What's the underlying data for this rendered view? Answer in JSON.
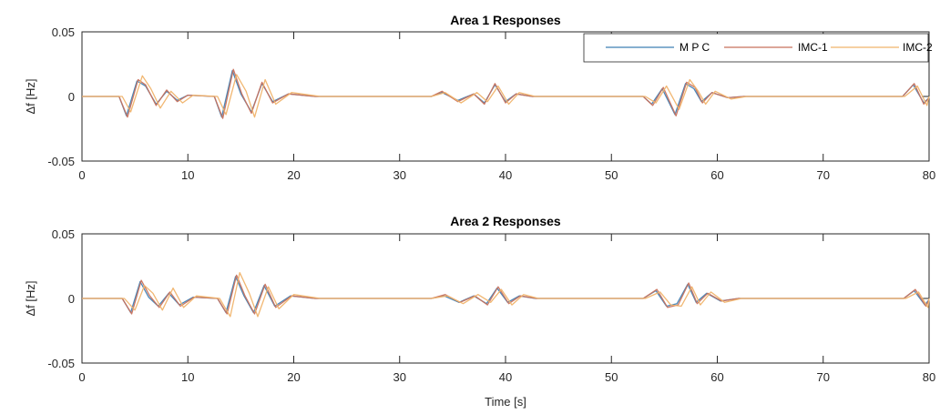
{
  "colors": {
    "axis": "#262626",
    "background": "#ffffff"
  },
  "legend": {
    "placement": "top-right",
    "items": [
      {
        "label": "M P C",
        "color": "#3f7fb3"
      },
      {
        "label": "IMC-1",
        "color": "#c8715c"
      },
      {
        "label": "IMC-2",
        "color": "#f0b36a"
      }
    ]
  },
  "chart_data": [
    {
      "type": "line",
      "title": "Area 1 Responses",
      "xlabel": "",
      "ylabel": "Δf [Hz]",
      "xlim": [
        0,
        80
      ],
      "ylim": [
        -0.05,
        0.05
      ],
      "xticks": [
        0,
        10,
        20,
        30,
        40,
        50,
        60,
        70,
        80
      ],
      "xtick_labels": [
        "0",
        "10",
        "20",
        "30",
        "40",
        "50",
        "60",
        "70",
        "80"
      ],
      "yticks": [
        -0.05,
        0,
        0.05
      ],
      "ytick_labels": [
        "-0.05",
        "0",
        "0.05"
      ],
      "grid": false,
      "legend": "top-right",
      "series": [
        {
          "name": "M P C",
          "color": "#3f7fb3",
          "x": [
            0,
            3.5,
            4.2,
            5.2,
            6.0,
            7.0,
            8.0,
            9.0,
            10.0,
            12.5,
            13.2,
            14.2,
            15.0,
            16.0,
            17.0,
            18.0,
            19.5,
            22.0,
            33.0,
            34.0,
            35.5,
            37.0,
            38.0,
            39.0,
            40.0,
            41.0,
            42.5,
            53.0,
            53.8,
            54.8,
            56.0,
            57.0,
            57.8,
            58.5,
            59.5,
            61.0,
            62.5,
            77.5,
            78.5,
            79.5,
            80.0
          ],
          "y": [
            0,
            0,
            -0.015,
            0.012,
            0.008,
            -0.006,
            0.004,
            -0.003,
            0.001,
            0,
            -0.016,
            0.02,
            0.002,
            -0.012,
            0.01,
            -0.004,
            0.002,
            0,
            0,
            0.003,
            -0.003,
            0.002,
            -0.005,
            0.009,
            -0.004,
            0.002,
            0,
            0,
            -0.006,
            0.006,
            -0.014,
            0.01,
            0.006,
            -0.004,
            0.003,
            -0.001,
            0,
            0,
            0.009,
            -0.005,
            -0.001
          ]
        },
        {
          "name": "IMC-1",
          "color": "#c8715c",
          "x": [
            0,
            3.5,
            4.3,
            5.3,
            6.0,
            7.0,
            8.0,
            9.0,
            10.0,
            12.5,
            13.3,
            14.3,
            15.1,
            16.0,
            17.0,
            18.0,
            19.5,
            22.0,
            33.0,
            34.0,
            35.5,
            37.0,
            38.0,
            39.0,
            40.0,
            41.0,
            42.5,
            53.0,
            53.9,
            54.9,
            56.1,
            57.1,
            57.9,
            58.6,
            59.5,
            61.0,
            62.5,
            77.5,
            78.6,
            79.5,
            80.0
          ],
          "y": [
            0,
            0,
            -0.016,
            0.013,
            0.009,
            -0.007,
            0.005,
            -0.004,
            0.001,
            0,
            -0.017,
            0.021,
            0.002,
            -0.013,
            0.011,
            -0.005,
            0.002,
            0,
            0,
            0.004,
            -0.004,
            0.002,
            -0.006,
            0.01,
            -0.005,
            0.002,
            0,
            0,
            -0.007,
            0.007,
            -0.015,
            0.011,
            0.007,
            -0.005,
            0.003,
            -0.001,
            0,
            0,
            0.01,
            -0.006,
            -0.001
          ]
        },
        {
          "name": "IMC-2",
          "color": "#f0b36a",
          "x": [
            0,
            3.8,
            4.6,
            5.7,
            6.5,
            7.4,
            8.4,
            9.5,
            10.5,
            12.8,
            13.6,
            14.6,
            15.5,
            16.3,
            17.3,
            18.3,
            19.8,
            22.5,
            33.0,
            34.3,
            35.8,
            37.3,
            38.3,
            39.3,
            40.3,
            41.3,
            42.8,
            53.2,
            54.2,
            55.2,
            56.4,
            57.4,
            58.2,
            58.9,
            59.8,
            61.3,
            62.8,
            77.7,
            78.9,
            79.8,
            80.0
          ],
          "y": [
            0,
            0,
            -0.012,
            0.016,
            0.006,
            -0.009,
            0.004,
            -0.005,
            0.001,
            0,
            -0.014,
            0.017,
            0.004,
            -0.016,
            0.013,
            -0.006,
            0.003,
            0,
            0,
            0.003,
            -0.005,
            0.003,
            -0.004,
            0.008,
            -0.006,
            0.003,
            0,
            0,
            -0.005,
            0.008,
            -0.01,
            0.013,
            0.004,
            -0.006,
            0.004,
            -0.002,
            0,
            0,
            0.008,
            -0.007,
            0
          ]
        }
      ]
    },
    {
      "type": "line",
      "title": "Area 2 Responses",
      "xlabel": "Time [s]",
      "ylabel": "Δf [Hz]",
      "xlim": [
        0,
        80
      ],
      "ylim": [
        -0.05,
        0.05
      ],
      "xticks": [
        0,
        10,
        20,
        30,
        40,
        50,
        60,
        70,
        80
      ],
      "xtick_labels": [
        "0",
        "10",
        "20",
        "30",
        "40",
        "50",
        "60",
        "70",
        "80"
      ],
      "yticks": [
        -0.05,
        0,
        0.05
      ],
      "ytick_labels": [
        "-0.05",
        "0",
        "0.05"
      ],
      "grid": false,
      "legend": "none",
      "series": [
        {
          "name": "M P C",
          "color": "#3f7fb3",
          "x": [
            0,
            3.8,
            4.6,
            5.5,
            6.3,
            7.2,
            8.2,
            9.2,
            10.5,
            12.8,
            13.6,
            14.5,
            15.3,
            16.2,
            17.2,
            18.2,
            19.7,
            22.0,
            33.0,
            34.2,
            35.6,
            37.0,
            38.2,
            39.2,
            40.2,
            41.3,
            42.8,
            53.0,
            54.2,
            55.2,
            56.2,
            57.2,
            58.0,
            59.0,
            60.3,
            62.0,
            77.6,
            78.6,
            79.6,
            80.0
          ],
          "y": [
            0,
            0,
            -0.011,
            0.013,
            0.001,
            -0.006,
            0.004,
            -0.005,
            0.001,
            0,
            -0.011,
            0.017,
            0.002,
            -0.011,
            0.01,
            -0.006,
            0.002,
            0,
            0,
            0.002,
            -0.003,
            0.002,
            -0.004,
            0.008,
            -0.003,
            0.002,
            0,
            0,
            0.006,
            -0.006,
            -0.004,
            0.011,
            -0.003,
            0.004,
            -0.002,
            0,
            0,
            0.006,
            -0.005,
            -0.001
          ]
        },
        {
          "name": "IMC-1",
          "color": "#c8715c",
          "x": [
            0,
            3.8,
            4.7,
            5.6,
            6.4,
            7.3,
            8.3,
            9.3,
            10.6,
            12.8,
            13.7,
            14.6,
            15.4,
            16.3,
            17.3,
            18.3,
            19.8,
            22.0,
            33.0,
            34.3,
            35.7,
            37.1,
            38.3,
            39.3,
            40.3,
            41.4,
            42.9,
            53.0,
            54.3,
            55.3,
            56.3,
            57.3,
            58.1,
            59.1,
            60.4,
            62.0,
            77.6,
            78.7,
            79.7,
            80.0
          ],
          "y": [
            0,
            0,
            -0.012,
            0.014,
            0.002,
            -0.007,
            0.005,
            -0.006,
            0.001,
            0,
            -0.012,
            0.018,
            0.002,
            -0.012,
            0.011,
            -0.007,
            0.002,
            0,
            0,
            0.003,
            -0.003,
            0.002,
            -0.005,
            0.009,
            -0.004,
            0.002,
            0,
            0,
            0.007,
            -0.007,
            -0.005,
            0.012,
            -0.004,
            0.004,
            -0.002,
            0,
            0,
            0.007,
            -0.006,
            -0.001
          ]
        },
        {
          "name": "IMC-2",
          "color": "#f0b36a",
          "x": [
            0,
            4.0,
            5.0,
            5.9,
            6.7,
            7.6,
            8.6,
            9.6,
            10.8,
            13.0,
            14.0,
            14.9,
            15.8,
            16.6,
            17.6,
            18.6,
            20.0,
            22.5,
            33.0,
            34.5,
            36.0,
            37.4,
            38.6,
            39.6,
            40.6,
            41.7,
            43.1,
            53.2,
            54.6,
            55.6,
            56.6,
            57.6,
            58.4,
            59.4,
            60.7,
            62.3,
            77.8,
            79.0,
            79.9,
            80.0
          ],
          "y": [
            0,
            0,
            -0.009,
            0.01,
            0.004,
            -0.009,
            0.008,
            -0.007,
            0.002,
            0,
            -0.014,
            0.02,
            0.004,
            -0.014,
            0.009,
            -0.008,
            0.003,
            0,
            0,
            0.002,
            -0.004,
            0.003,
            -0.003,
            0.007,
            -0.005,
            0.003,
            0,
            0,
            0.005,
            -0.005,
            -0.006,
            0.009,
            -0.005,
            0.005,
            -0.003,
            0,
            0,
            0.005,
            -0.007,
            0
          ]
        }
      ]
    }
  ]
}
